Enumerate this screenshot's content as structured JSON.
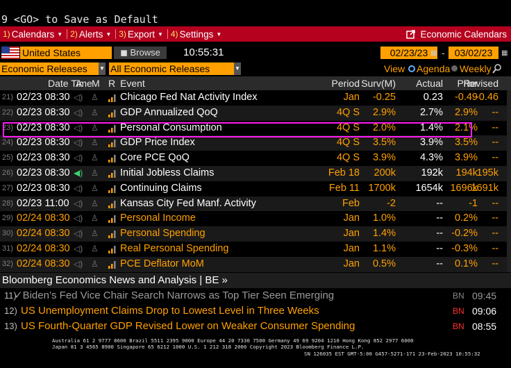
{
  "command_line": "9 <GO> to Save as Default",
  "menu": {
    "items": [
      {
        "num": "1)",
        "label": "Calendars"
      },
      {
        "num": "2)",
        "label": "Alerts"
      },
      {
        "num": "3)",
        "label": "Export"
      },
      {
        "num": "4)",
        "label": "Settings"
      }
    ],
    "right_label": "Economic Calendars"
  },
  "filters": {
    "country": "United States",
    "browse": "Browse",
    "time": "10:55:31",
    "start_date": "02/23/23",
    "date_sep": "-",
    "end_date": "03/02/23",
    "category": "Economic Releases",
    "subcategory": "All Economic Releases",
    "view_label": "View",
    "view_agenda": "Agenda",
    "view_weekly": "Weekly"
  },
  "table": {
    "headers": {
      "datetime": "Date Time",
      "a": "A",
      "m": "M",
      "r": "R",
      "event": "Event",
      "period": "Period",
      "surv": "Surv(M)",
      "actual": "Actual",
      "prior": "Prior",
      "revised": "Revised"
    },
    "rows": [
      {
        "idx": "21)",
        "datetime": "02/23 08:30",
        "event": "Chicago Fed Nat Activity Index",
        "period": "Jan",
        "surv": "-0.25",
        "actual": "0.23",
        "prior": "-0.49",
        "revised": "-0.46",
        "color": "white",
        "alert": "off"
      },
      {
        "idx": "22)",
        "datetime": "02/23 08:30",
        "event": "GDP Annualized QoQ",
        "period": "4Q S",
        "surv": "2.9%",
        "actual": "2.7%",
        "prior": "2.9%",
        "revised": "--",
        "color": "white",
        "alert": "off"
      },
      {
        "idx": "23)",
        "datetime": "02/23 08:30",
        "event": "Personal Consumption",
        "period": "4Q S",
        "surv": "2.0%",
        "actual": "1.4%",
        "prior": "2.1%",
        "revised": "--",
        "color": "white",
        "alert": "off"
      },
      {
        "idx": "24)",
        "datetime": "02/23 08:30",
        "event": "GDP Price Index",
        "period": "4Q S",
        "surv": "3.5%",
        "actual": "3.9%",
        "prior": "3.5%",
        "revised": "--",
        "color": "white",
        "alert": "off"
      },
      {
        "idx": "25)",
        "datetime": "02/23 08:30",
        "event": "Core PCE QoQ",
        "period": "4Q S",
        "surv": "3.9%",
        "actual": "4.3%",
        "prior": "3.9%",
        "revised": "--",
        "color": "white",
        "alert": "off"
      },
      {
        "idx": "26)",
        "datetime": "02/23 08:30",
        "event": "Initial Jobless Claims",
        "period": "Feb 18",
        "surv": "200k",
        "actual": "192k",
        "prior": "194k",
        "revised": "195k",
        "color": "white",
        "alert": "on"
      },
      {
        "idx": "27)",
        "datetime": "02/23 08:30",
        "event": "Continuing Claims",
        "period": "Feb 11",
        "surv": "1700k",
        "actual": "1654k",
        "prior": "1696k",
        "revised": "1691k",
        "color": "white",
        "alert": "off"
      },
      {
        "idx": "28)",
        "datetime": "02/23 11:00",
        "event": "Kansas City Fed Manf. Activity",
        "period": "Feb",
        "surv": "-2",
        "actual": "--",
        "prior": "-1",
        "revised": "--",
        "color": "white",
        "alert": "off"
      },
      {
        "idx": "29)",
        "datetime": "02/24 08:30",
        "event": "Personal Income",
        "period": "Jan",
        "surv": "1.0%",
        "actual": "--",
        "prior": "0.2%",
        "revised": "--",
        "color": "orange",
        "alert": "off"
      },
      {
        "idx": "30)",
        "datetime": "02/24 08:30",
        "event": "Personal Spending",
        "period": "Jan",
        "surv": "1.4%",
        "actual": "--",
        "prior": "-0.2%",
        "revised": "--",
        "color": "orange",
        "alert": "off"
      },
      {
        "idx": "31)",
        "datetime": "02/24 08:30",
        "event": "Real Personal Spending",
        "period": "Jan",
        "surv": "1.1%",
        "actual": "--",
        "prior": "-0.3%",
        "revised": "--",
        "color": "orange",
        "alert": "off"
      },
      {
        "idx": "32)",
        "datetime": "02/24 08:30",
        "event": "PCE Deflator MoM",
        "period": "Jan",
        "surv": "0.5%",
        "actual": "--",
        "prior": "0.1%",
        "revised": "--",
        "color": "orange",
        "alert": "off"
      }
    ]
  },
  "news": {
    "header": "Bloomberg Economics News and Analysis | BE »",
    "items": [
      {
        "idx": "11)",
        "title": "✓Biden’s Fed Vice Chair Search Narrows as Top Tier Seen Emerging",
        "source": "BN",
        "time": "09:45",
        "read": true
      },
      {
        "idx": "12)",
        "title": "US Unemployment Claims Drop to Lowest Level in Three Weeks",
        "source": "BN",
        "time": "09:06",
        "read": false
      },
      {
        "idx": "13)",
        "title": "US Fourth-Quarter GDP Revised Lower on Weaker Consumer Spending",
        "source": "BN",
        "time": "08:55",
        "read": false
      }
    ]
  },
  "footer": {
    "line1": "Australia 61 2 9777 8600 Brazil 5511 2395 9000 Europe 44 20 7330 7500 Germany 49 69 9204 1210 Hong Kong 852 2977 6000",
    "line2": "Japan 81 3 4565 8900        Singapore 65 6212 1000      U.S. 1 212 318 2000           Copyright 2023 Bloomberg Finance L.P.",
    "line3": "SN 126035 EST  GMT-5:00 G457-5271-171 23-Feb-2023 10:55:32"
  },
  "colors": {
    "menu_bg": "#b5001e",
    "amber": "#ffa000",
    "highlight": "#ff1cf2",
    "news_red": "#ff3030"
  }
}
